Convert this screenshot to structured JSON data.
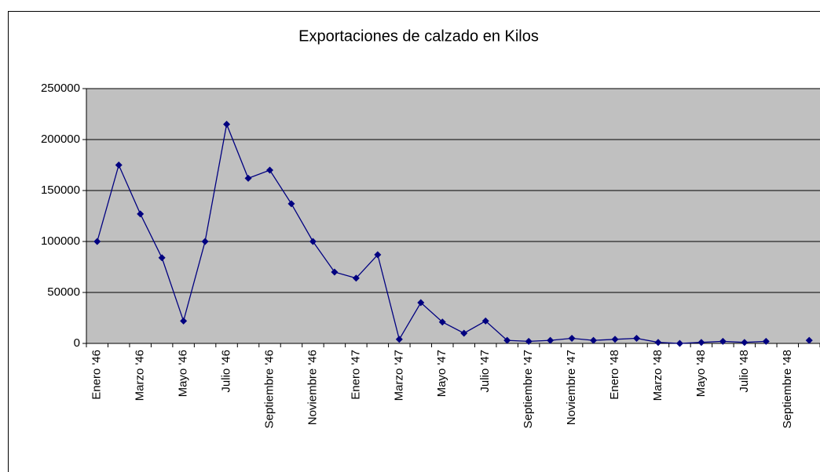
{
  "chart_data": {
    "type": "line",
    "title": "Exportaciones de calzado en Kilos",
    "categories": [
      "Enero '46",
      null,
      "Marzo '46",
      null,
      "Mayo '46",
      null,
      "Julio '46",
      null,
      "Septiembre '46",
      null,
      "Noviembre '46",
      null,
      "Enero '47",
      null,
      "Marzo '47",
      null,
      "Mayo '47",
      null,
      "Julio '47",
      null,
      "Septiembre '47",
      null,
      "Noviembre '47",
      null,
      "Enero '48",
      null,
      "Marzo '48",
      null,
      "Mayo '48",
      null,
      "Julio '48",
      null,
      "Septiembre '48",
      null
    ],
    "series": [
      {
        "name": "Kilos",
        "color": "#000080",
        "values": [
          100000,
          175000,
          127000,
          84000,
          22000,
          100000,
          215000,
          162000,
          170000,
          137000,
          100000,
          70000,
          64000,
          87000,
          4000,
          40000,
          21000,
          10000,
          22000,
          3000,
          2000,
          3000,
          5000,
          3000,
          4000,
          5000,
          1000,
          0,
          1000,
          2000,
          1000,
          2000,
          null,
          3000
        ]
      }
    ],
    "ylim": [
      0,
      250000
    ],
    "yticks": [
      0,
      50000,
      100000,
      150000,
      200000,
      250000
    ],
    "grid": true,
    "plot_background": "#c0c0c0"
  }
}
